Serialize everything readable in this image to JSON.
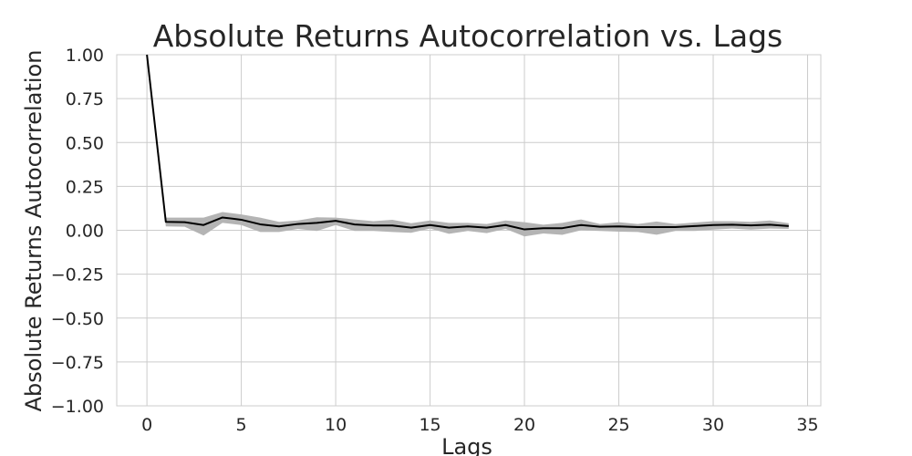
{
  "chart_data": {
    "type": "line",
    "title": "Absolute Returns Autocorrelation vs. Lags",
    "xlabel": "Lags",
    "ylabel": "Absolute Returns Autocorrelation",
    "xlim": [
      -1.6,
      35.7
    ],
    "ylim": [
      -1.0,
      1.0
    ],
    "xticks": [
      0,
      5,
      10,
      15,
      20,
      25,
      30,
      35
    ],
    "xtick_labels": [
      "0",
      "5",
      "10",
      "15",
      "20",
      "25",
      "30",
      "35"
    ],
    "yticks": [
      1.0,
      0.75,
      0.5,
      0.25,
      0.0,
      -0.25,
      -0.5,
      -0.75,
      -1.0
    ],
    "ytick_labels": [
      "1.00",
      "0.75",
      "0.50",
      "0.25",
      "0.00",
      "−0.25",
      "−0.50",
      "−0.75",
      "−1.00"
    ],
    "grid": true,
    "series": [
      {
        "color": "#000000",
        "x": [
          0,
          1,
          2,
          3,
          4,
          5,
          6,
          7,
          8,
          9,
          10,
          11,
          12,
          13,
          14,
          15,
          16,
          17,
          18,
          19,
          20,
          21,
          22,
          23,
          24,
          25,
          26,
          27,
          28,
          29,
          30,
          31,
          32,
          33,
          34
        ],
        "values": [
          1.0,
          0.048,
          0.046,
          0.03,
          0.073,
          0.06,
          0.034,
          0.022,
          0.036,
          0.042,
          0.054,
          0.033,
          0.027,
          0.027,
          0.015,
          0.03,
          0.015,
          0.022,
          0.015,
          0.03,
          0.005,
          0.012,
          0.012,
          0.03,
          0.02,
          0.022,
          0.018,
          0.018,
          0.018,
          0.024,
          0.03,
          0.032,
          0.028,
          0.032,
          0.024
        ]
      }
    ],
    "band": {
      "color": "#b4b4b4",
      "lower": [
        1.0,
        0.022,
        0.02,
        -0.03,
        0.042,
        0.03,
        -0.01,
        -0.01,
        0.008,
        -0.004,
        0.03,
        -0.004,
        -0.004,
        -0.01,
        -0.014,
        0.01,
        -0.02,
        -0.004,
        -0.016,
        0.008,
        -0.035,
        -0.018,
        -0.026,
        0.0,
        -0.004,
        -0.008,
        -0.01,
        -0.025,
        -0.004,
        -0.004,
        0.004,
        0.01,
        0.004,
        0.01,
        0.008
      ],
      "upper": [
        1.0,
        0.072,
        0.072,
        0.072,
        0.104,
        0.09,
        0.072,
        0.048,
        0.056,
        0.074,
        0.072,
        0.062,
        0.052,
        0.06,
        0.04,
        0.056,
        0.042,
        0.042,
        0.036,
        0.056,
        0.046,
        0.032,
        0.042,
        0.062,
        0.036,
        0.046,
        0.036,
        0.05,
        0.036,
        0.044,
        0.052,
        0.052,
        0.048,
        0.056,
        0.04
      ]
    }
  }
}
